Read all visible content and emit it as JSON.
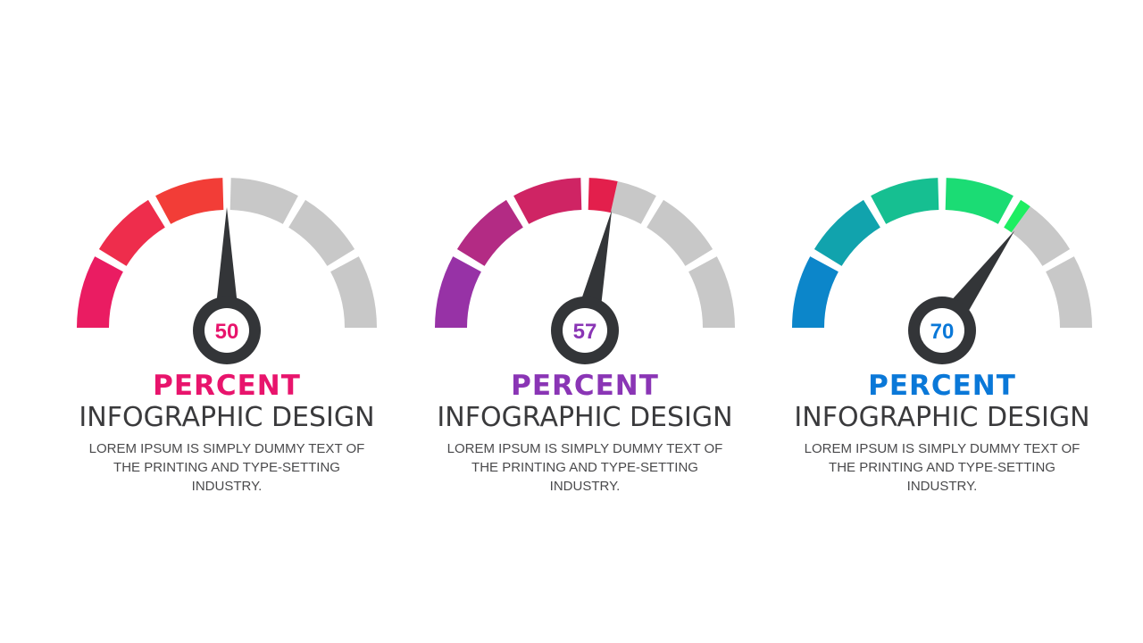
{
  "gauges": [
    {
      "value": "50",
      "level": 0.5,
      "title": "PERCENT",
      "subtitle": "INFOGRAPHIC DESIGN",
      "body": "LOREM IPSUM IS SIMPLY DUMMY TEXT OF THE PRINTING AND TYPE-SETTING INDUSTRY.",
      "colors": {
        "start": "#e8146c",
        "end": "#f4452c",
        "accent": "#e8146c"
      }
    },
    {
      "value": "57",
      "level": 0.57,
      "title": "PERCENT",
      "subtitle": "INFOGRAPHIC DESIGN",
      "body": "LOREM IPSUM IS SIMPLY DUMMY TEXT OF THE PRINTING AND TYPE-SETTING INDUSTRY.",
      "colors": {
        "start": "#8a35b5",
        "end": "#e81e46",
        "accent": "#8a35b5"
      }
    },
    {
      "value": "70",
      "level": 0.7,
      "title": "PERCENT",
      "subtitle": "INFOGRAPHIC DESIGN",
      "body": "LOREM IPSUM IS SIMPLY DUMMY TEXT OF THE PRINTING AND TYPE-SETTING INDUSTRY.",
      "colors": {
        "start": "#0a78d8",
        "end": "#1ef060",
        "accent": "#0a78d8"
      }
    }
  ],
  "theme": {
    "inactive": "#c8c8c8",
    "needle": "#333538",
    "hub_fill": "#ffffff"
  }
}
